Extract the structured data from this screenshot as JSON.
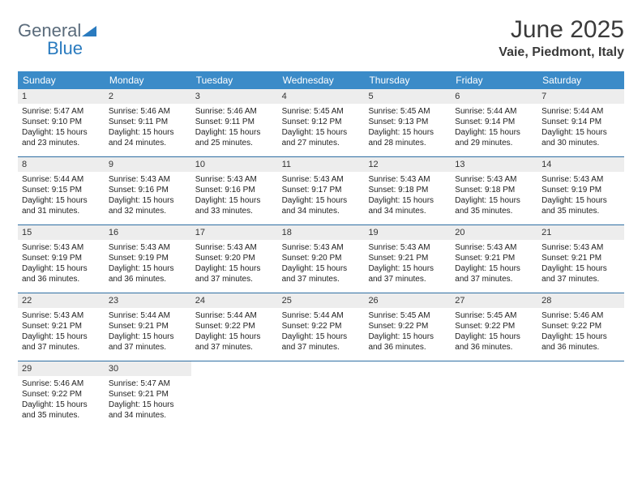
{
  "brand": {
    "part1": "General",
    "part2": "Blue"
  },
  "title": {
    "month": "June 2025",
    "location": "Vaie, Piedmont, Italy"
  },
  "colors": {
    "header_bg": "#3b8bc8",
    "week_border": "#2f6fa3",
    "daynum_bg": "#ededed",
    "brand_gray": "#5a6b7b",
    "brand_blue": "#2a7bbf"
  },
  "dow": [
    "Sunday",
    "Monday",
    "Tuesday",
    "Wednesday",
    "Thursday",
    "Friday",
    "Saturday"
  ],
  "weeks": [
    [
      {
        "n": "1",
        "sr": "5:47 AM",
        "ss": "9:10 PM",
        "dl": "15 hours and 23 minutes."
      },
      {
        "n": "2",
        "sr": "5:46 AM",
        "ss": "9:11 PM",
        "dl": "15 hours and 24 minutes."
      },
      {
        "n": "3",
        "sr": "5:46 AM",
        "ss": "9:11 PM",
        "dl": "15 hours and 25 minutes."
      },
      {
        "n": "4",
        "sr": "5:45 AM",
        "ss": "9:12 PM",
        "dl": "15 hours and 27 minutes."
      },
      {
        "n": "5",
        "sr": "5:45 AM",
        "ss": "9:13 PM",
        "dl": "15 hours and 28 minutes."
      },
      {
        "n": "6",
        "sr": "5:44 AM",
        "ss": "9:14 PM",
        "dl": "15 hours and 29 minutes."
      },
      {
        "n": "7",
        "sr": "5:44 AM",
        "ss": "9:14 PM",
        "dl": "15 hours and 30 minutes."
      }
    ],
    [
      {
        "n": "8",
        "sr": "5:44 AM",
        "ss": "9:15 PM",
        "dl": "15 hours and 31 minutes."
      },
      {
        "n": "9",
        "sr": "5:43 AM",
        "ss": "9:16 PM",
        "dl": "15 hours and 32 minutes."
      },
      {
        "n": "10",
        "sr": "5:43 AM",
        "ss": "9:16 PM",
        "dl": "15 hours and 33 minutes."
      },
      {
        "n": "11",
        "sr": "5:43 AM",
        "ss": "9:17 PM",
        "dl": "15 hours and 34 minutes."
      },
      {
        "n": "12",
        "sr": "5:43 AM",
        "ss": "9:18 PM",
        "dl": "15 hours and 34 minutes."
      },
      {
        "n": "13",
        "sr": "5:43 AM",
        "ss": "9:18 PM",
        "dl": "15 hours and 35 minutes."
      },
      {
        "n": "14",
        "sr": "5:43 AM",
        "ss": "9:19 PM",
        "dl": "15 hours and 35 minutes."
      }
    ],
    [
      {
        "n": "15",
        "sr": "5:43 AM",
        "ss": "9:19 PM",
        "dl": "15 hours and 36 minutes."
      },
      {
        "n": "16",
        "sr": "5:43 AM",
        "ss": "9:19 PM",
        "dl": "15 hours and 36 minutes."
      },
      {
        "n": "17",
        "sr": "5:43 AM",
        "ss": "9:20 PM",
        "dl": "15 hours and 37 minutes."
      },
      {
        "n": "18",
        "sr": "5:43 AM",
        "ss": "9:20 PM",
        "dl": "15 hours and 37 minutes."
      },
      {
        "n": "19",
        "sr": "5:43 AM",
        "ss": "9:21 PM",
        "dl": "15 hours and 37 minutes."
      },
      {
        "n": "20",
        "sr": "5:43 AM",
        "ss": "9:21 PM",
        "dl": "15 hours and 37 minutes."
      },
      {
        "n": "21",
        "sr": "5:43 AM",
        "ss": "9:21 PM",
        "dl": "15 hours and 37 minutes."
      }
    ],
    [
      {
        "n": "22",
        "sr": "5:43 AM",
        "ss": "9:21 PM",
        "dl": "15 hours and 37 minutes."
      },
      {
        "n": "23",
        "sr": "5:44 AM",
        "ss": "9:21 PM",
        "dl": "15 hours and 37 minutes."
      },
      {
        "n": "24",
        "sr": "5:44 AM",
        "ss": "9:22 PM",
        "dl": "15 hours and 37 minutes."
      },
      {
        "n": "25",
        "sr": "5:44 AM",
        "ss": "9:22 PM",
        "dl": "15 hours and 37 minutes."
      },
      {
        "n": "26",
        "sr": "5:45 AM",
        "ss": "9:22 PM",
        "dl": "15 hours and 36 minutes."
      },
      {
        "n": "27",
        "sr": "5:45 AM",
        "ss": "9:22 PM",
        "dl": "15 hours and 36 minutes."
      },
      {
        "n": "28",
        "sr": "5:46 AM",
        "ss": "9:22 PM",
        "dl": "15 hours and 36 minutes."
      }
    ],
    [
      {
        "n": "29",
        "sr": "5:46 AM",
        "ss": "9:22 PM",
        "dl": "15 hours and 35 minutes."
      },
      {
        "n": "30",
        "sr": "5:47 AM",
        "ss": "9:21 PM",
        "dl": "15 hours and 34 minutes."
      },
      null,
      null,
      null,
      null,
      null
    ]
  ],
  "labels": {
    "sunrise": "Sunrise: ",
    "sunset": "Sunset: ",
    "daylight": "Daylight: "
  }
}
